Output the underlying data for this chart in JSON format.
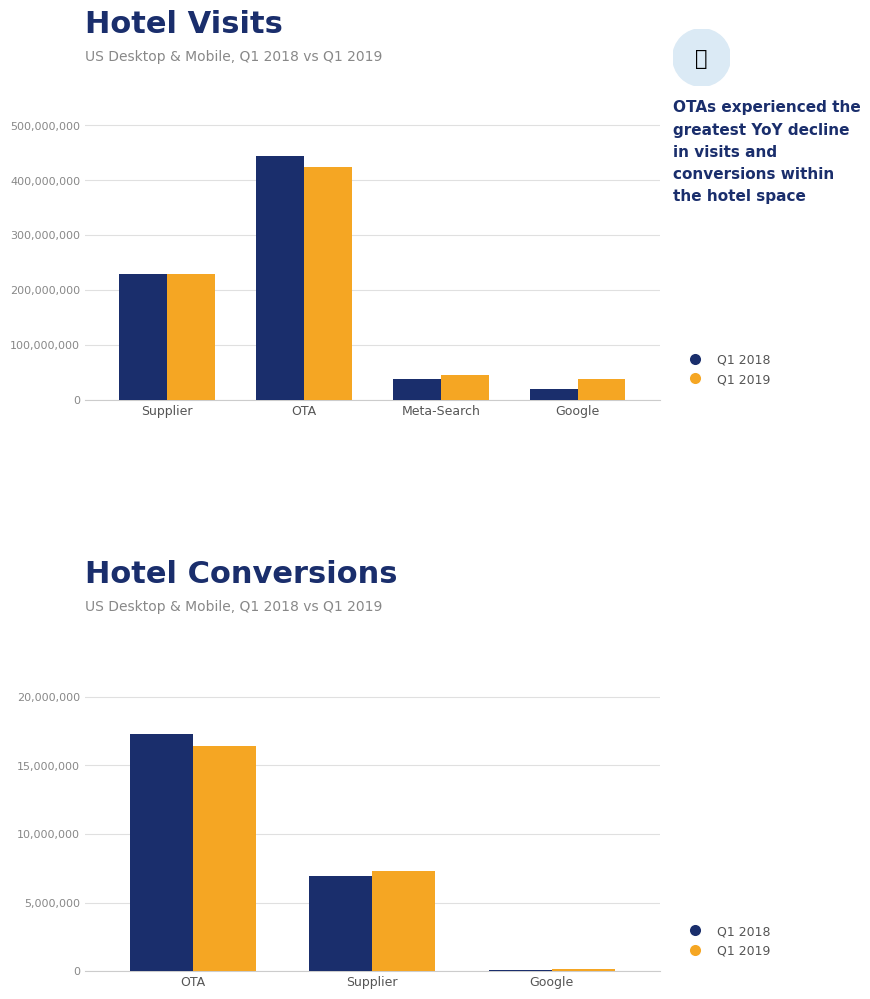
{
  "visits_title": "Hotel Visits",
  "visits_subtitle": "US Desktop & Mobile, Q1 2018 vs Q1 2019",
  "visits_categories": [
    "Supplier",
    "OTA",
    "Meta-Search",
    "Google"
  ],
  "visits_q1_2018": [
    230000000,
    445000000,
    37000000,
    20000000
  ],
  "visits_q1_2019": [
    230000000,
    425000000,
    45000000,
    38000000
  ],
  "visits_ylim": [
    0,
    550000000
  ],
  "visits_yticks": [
    0,
    100000000,
    200000000,
    300000000,
    400000000,
    500000000
  ],
  "conversions_title": "Hotel Conversions",
  "conversions_subtitle": "US Desktop & Mobile, Q1 2018 vs Q1 2019",
  "conversions_categories": [
    "OTA",
    "Supplier",
    "Google"
  ],
  "conversions_q1_2018": [
    17300000,
    6900000,
    100000
  ],
  "conversions_q1_2019": [
    16400000,
    7300000,
    180000
  ],
  "conversions_ylim": [
    0,
    22000000
  ],
  "conversions_yticks": [
    0,
    5000000,
    10000000,
    15000000,
    20000000
  ],
  "color_2018": "#1a2e6c",
  "color_2019": "#f5a623",
  "bar_width": 0.35,
  "legend_q1_2018": "Q1 2018",
  "legend_q1_2019": "Q1 2019",
  "annotation_text": "OTAs experienced the\ngreatest YoY decline\nin visits and\nconversions within\nthe hotel space",
  "background_color": "#ffffff",
  "grid_color": "#e0e0e0",
  "title_color": "#1a2e6c",
  "subtitle_color": "#888888",
  "tick_color": "#888888",
  "xticklabel_color": "#555555"
}
